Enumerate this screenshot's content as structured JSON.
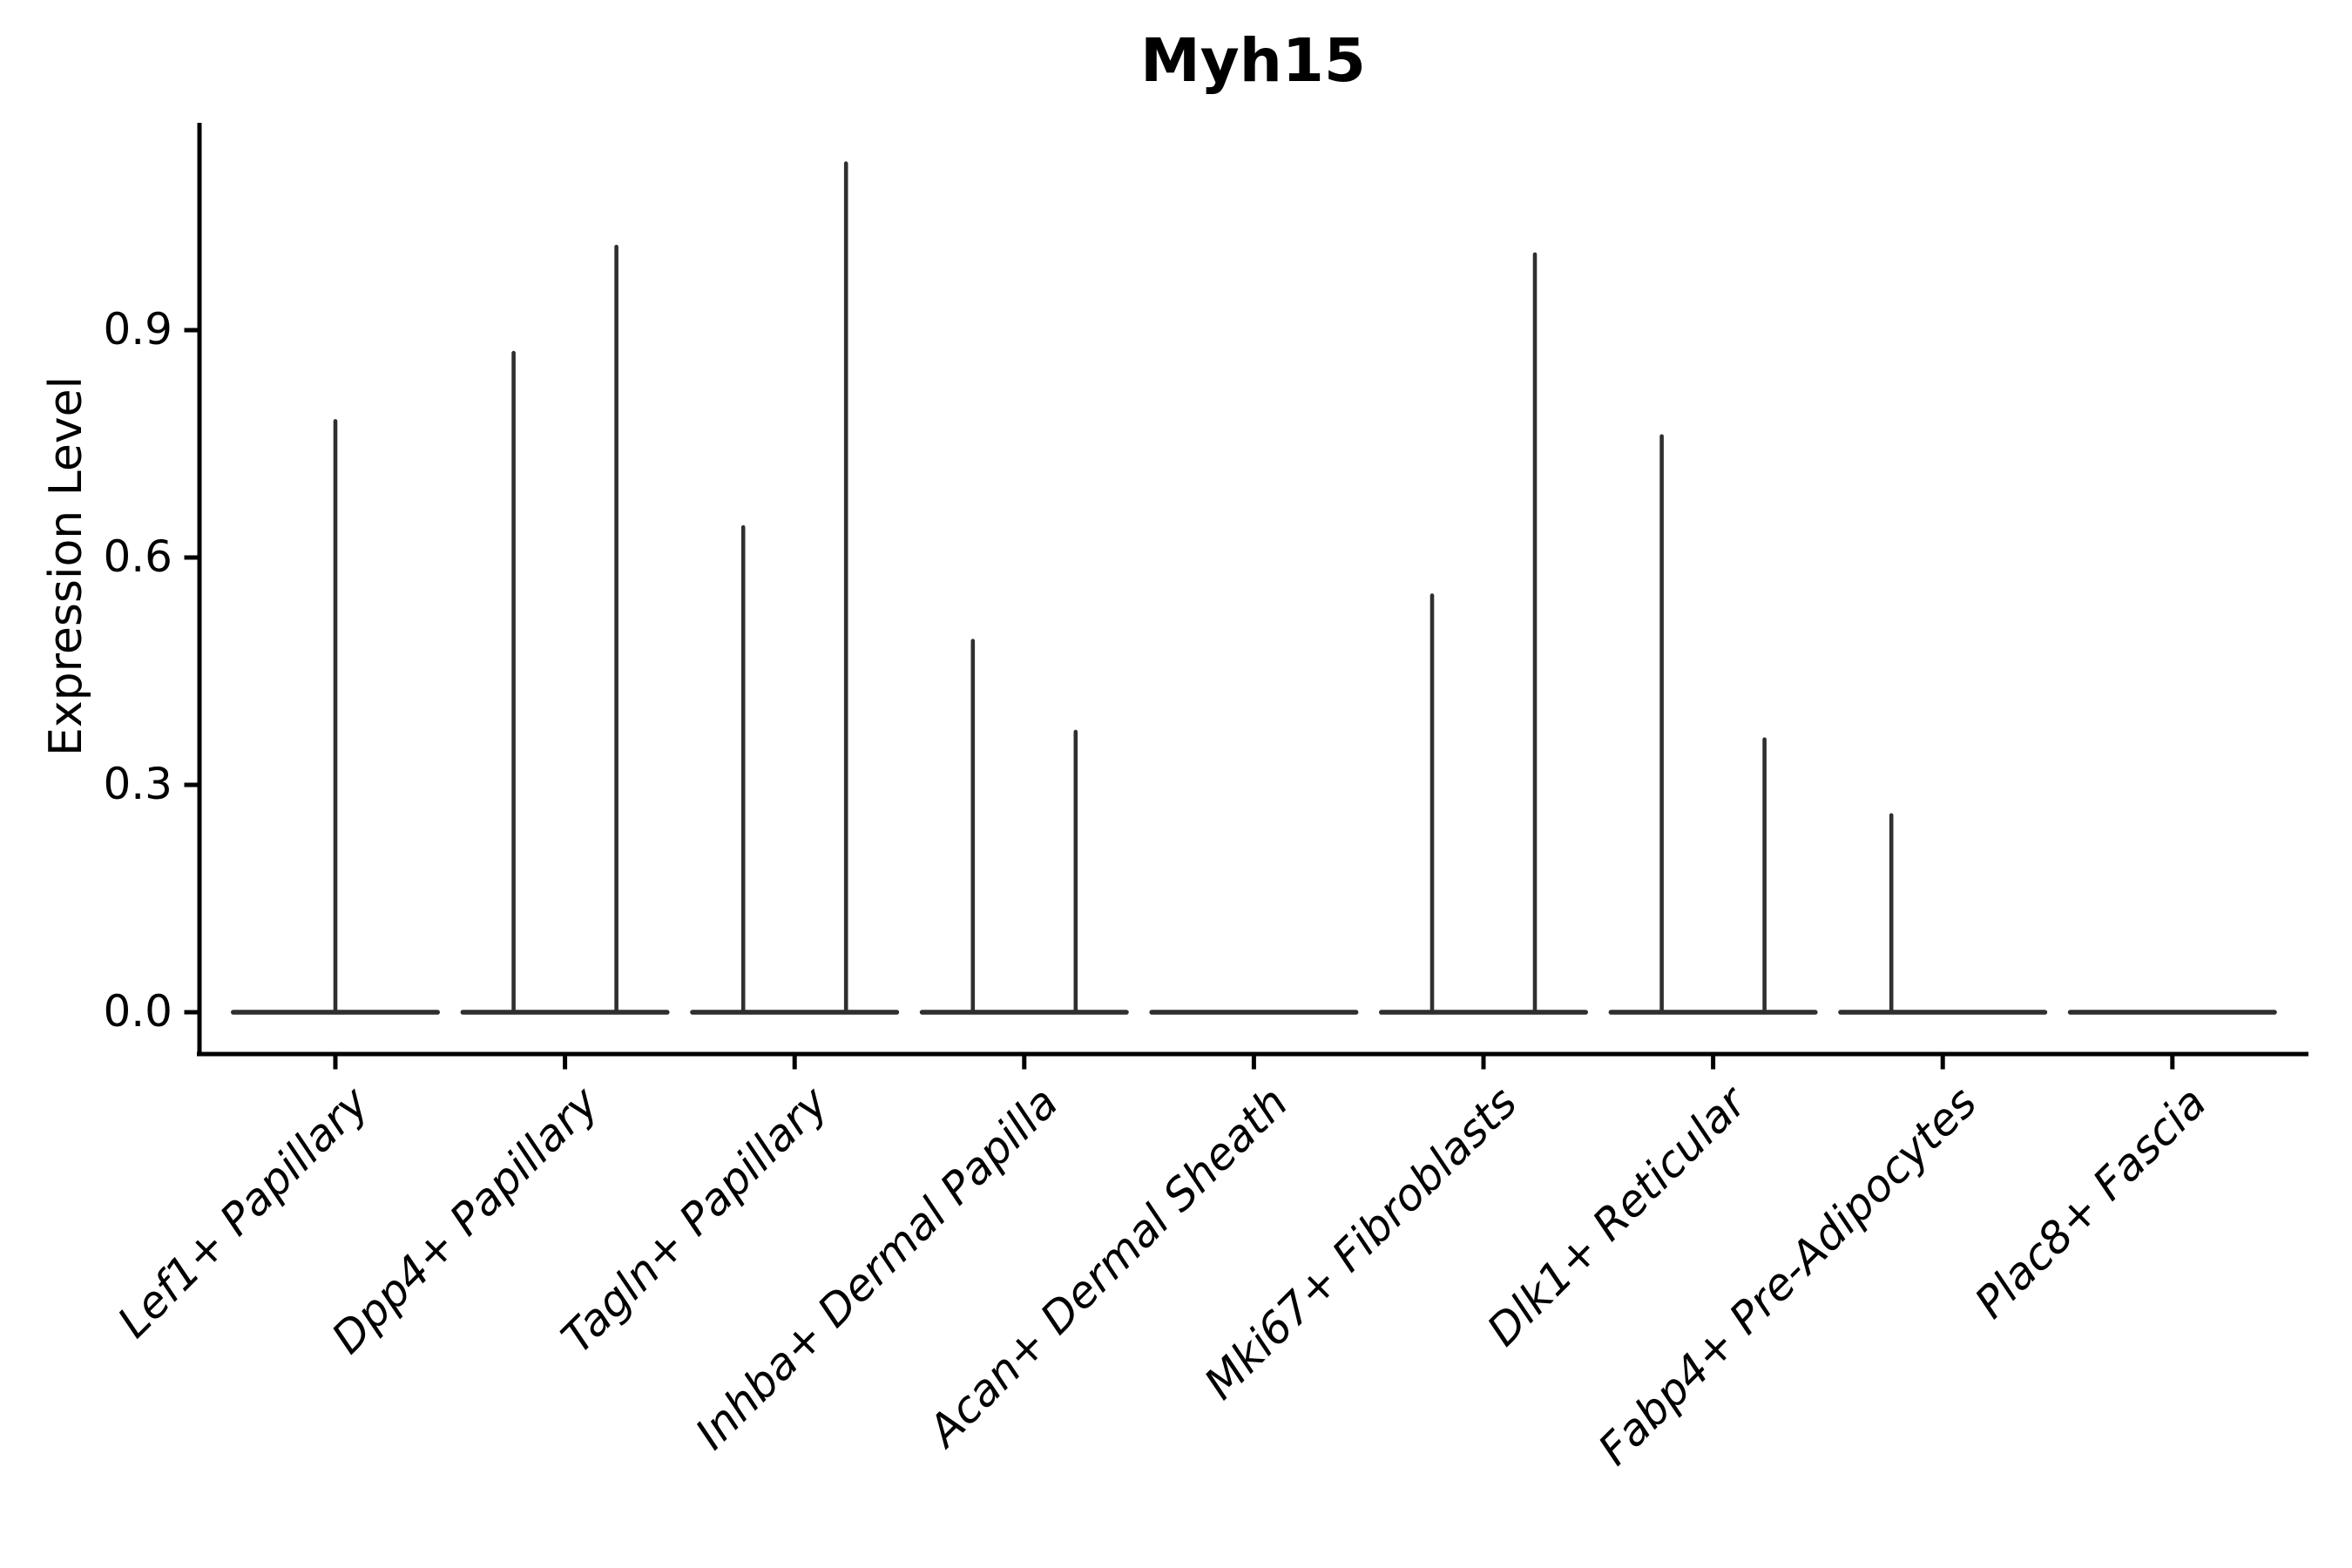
{
  "chart_data": {
    "type": "violin",
    "title": "Myh15",
    "ylabel": "Expression Level",
    "xlabel": "",
    "ylim": [
      0,
      1.17
    ],
    "ytick_labels": [
      "0.0",
      "0.3",
      "0.6",
      "0.9"
    ],
    "ytick_values": [
      0,
      0.3,
      0.6,
      0.9
    ],
    "grid": false,
    "legend": "none",
    "colors": {
      "violin_stroke": "#2f2f2f",
      "axis": "#000000",
      "text": "#000000",
      "background": "#ffffff"
    },
    "note": "Single-cell expression violin plot; each violin collapses to a flat bar at 0 with a thin vertical spike reaching the maximum expression value. Some cell types show two side-by-side sub-violins (left/right spike positions).",
    "violins": [
      {
        "category": "Lef1+ Papillary",
        "spikes": [
          {
            "position": "center",
            "max": 0.78
          }
        ]
      },
      {
        "category": "Dpp4+ Papillary",
        "spikes": [
          {
            "position": "left",
            "max": 0.87
          },
          {
            "position": "right",
            "max": 1.01
          }
        ]
      },
      {
        "category": "Tagln+ Papillary",
        "spikes": [
          {
            "position": "left",
            "max": 0.64
          },
          {
            "position": "right",
            "max": 1.12
          }
        ]
      },
      {
        "category": "Inhba+ Dermal Papilla",
        "spikes": [
          {
            "position": "left",
            "max": 0.49
          },
          {
            "position": "right",
            "max": 0.37
          }
        ]
      },
      {
        "category": "Acan+ Dermal Sheath",
        "spikes": []
      },
      {
        "category": "Mki67+ Fibroblasts",
        "spikes": [
          {
            "position": "left",
            "max": 0.55
          },
          {
            "position": "right",
            "max": 1.0
          }
        ]
      },
      {
        "category": "Dlk1+ Reticular",
        "spikes": [
          {
            "position": "left",
            "max": 0.76
          },
          {
            "position": "right",
            "max": 0.36
          }
        ]
      },
      {
        "category": "Fabp4+ Pre-Adipocytes",
        "spikes": [
          {
            "position": "left",
            "max": 0.26
          }
        ]
      },
      {
        "category": "Plac8+ Fascia",
        "spikes": []
      }
    ]
  }
}
